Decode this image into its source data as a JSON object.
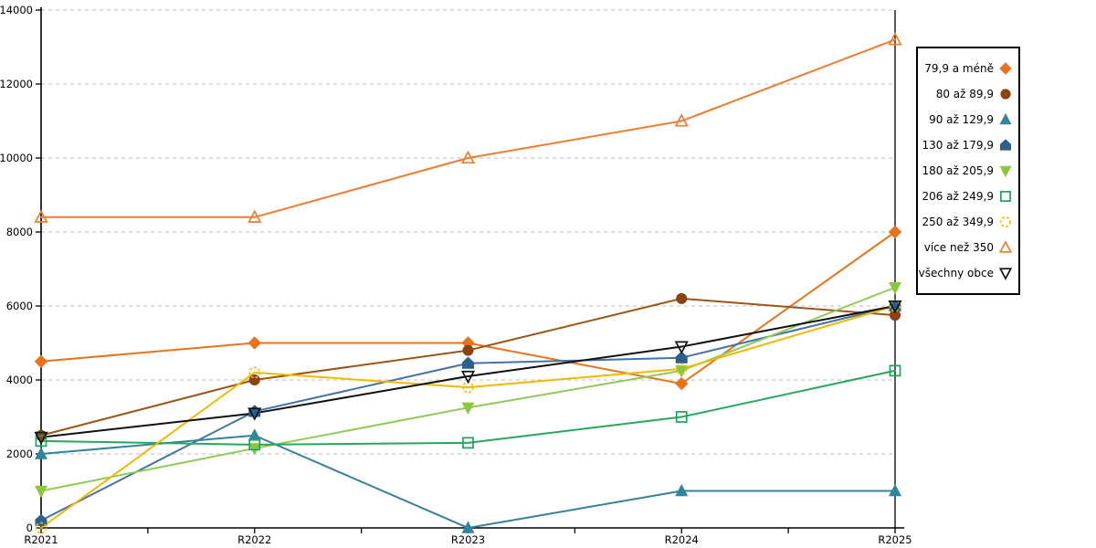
{
  "chart_data": {
    "type": "line",
    "title": "",
    "xlabel": "",
    "ylabel": "",
    "categories": [
      "R2021",
      "R2022",
      "R2023",
      "R2024",
      "R2025"
    ],
    "ylim": [
      0,
      14000
    ],
    "yticks": [
      0,
      2000,
      4000,
      6000,
      8000,
      10000,
      12000,
      14000
    ],
    "grid": "horizontal-dashed",
    "legend_position": "right-box",
    "grid_color": "#bdbdbd",
    "axis_color": "#000000",
    "series": [
      {
        "name": "79,9 a méně",
        "marker": "diamond",
        "fill": "solid",
        "color": "#e8731c",
        "marker_color": "#e8731c",
        "values": [
          4500,
          5000,
          5000,
          3900,
          8000
        ]
      },
      {
        "name": "80 až 89,9",
        "marker": "circle",
        "fill": "solid",
        "color": "#9c5517",
        "marker_color": "#8c430f",
        "values": [
          2500,
          4000,
          4800,
          6200,
          5750
        ]
      },
      {
        "name": "90 až 129,9",
        "marker": "triangle-up",
        "fill": "solid",
        "color": "#35829b",
        "marker_color": "#31859c",
        "values": [
          2000,
          2500,
          0,
          1000,
          1000
        ]
      },
      {
        "name": "130 až 179,9",
        "marker": "pentagon",
        "fill": "solid",
        "color": "#4472a8",
        "marker_color": "#2d5e8c",
        "values": [
          200,
          3150,
          4450,
          4600,
          6000
        ]
      },
      {
        "name": "180 až 205,9",
        "marker": "triangle-down",
        "fill": "solid",
        "color": "#8fcb57",
        "marker_color": "#8cc63f",
        "values": [
          1000,
          2150,
          3250,
          4250,
          6500
        ]
      },
      {
        "name": "206 až 249,9",
        "marker": "square",
        "fill": "open",
        "color": "#27a85f",
        "marker_color": "#1da15f",
        "values": [
          2350,
          2250,
          2300,
          3000,
          4250
        ]
      },
      {
        "name": "250 až 349,9",
        "marker": "circle-dashed",
        "fill": "open",
        "color": "#f2b800",
        "marker_color": "#f0c000",
        "values": [
          0,
          4200,
          3800,
          4300,
          6000
        ]
      },
      {
        "name": "více než 350",
        "marker": "triangle-up",
        "fill": "open",
        "color": "#ed7d31",
        "marker_color": "#ed7d31",
        "values": [
          8400,
          8400,
          10000,
          11000,
          13200
        ]
      },
      {
        "name": "všechny obce",
        "marker": "triangle-down",
        "fill": "open",
        "color": "#111111",
        "marker_color": "#111111",
        "values": [
          2450,
          3100,
          4100,
          4900,
          6000
        ]
      }
    ]
  }
}
